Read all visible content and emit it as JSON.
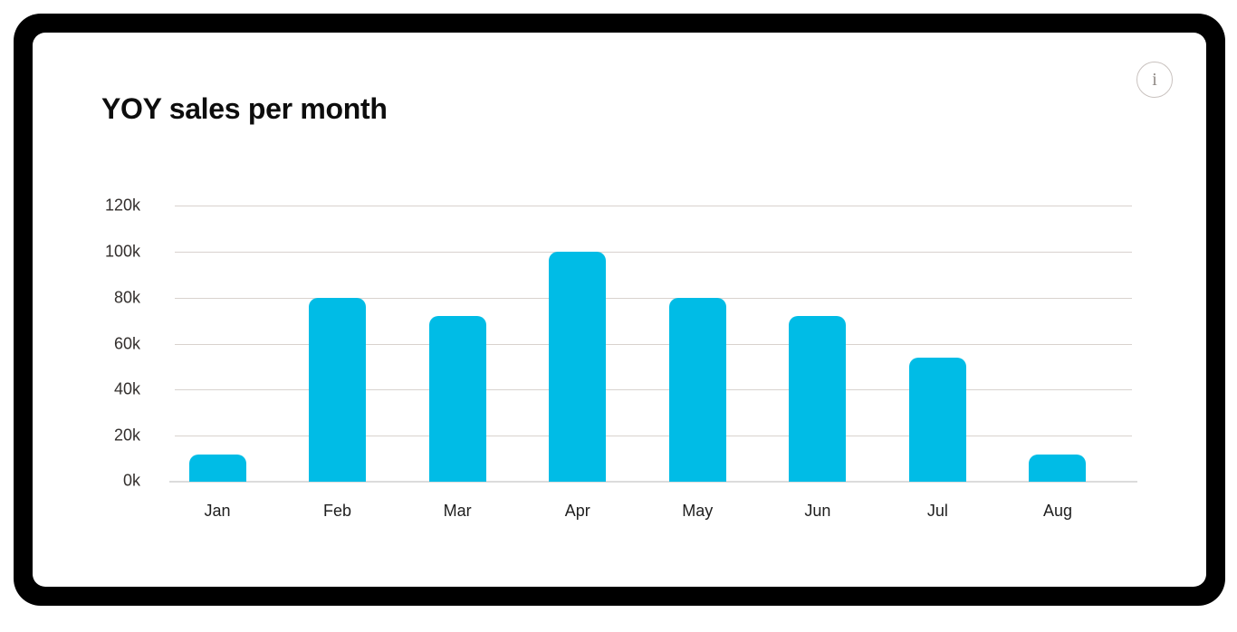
{
  "window": {
    "frame_color": "#000000",
    "card_background": "#ffffff"
  },
  "card": {
    "title": "YOY sales per month",
    "info_button": {
      "glyph": "i"
    }
  },
  "chart_data": {
    "type": "bar",
    "title": "YOY sales per month",
    "categories": [
      "Jan",
      "Feb",
      "Mar",
      "Apr",
      "May",
      "Jun",
      "Jul",
      "Aug"
    ],
    "values": [
      12,
      80,
      72,
      100,
      80,
      72,
      54,
      12
    ],
    "value_unit": "k",
    "xlabel": "",
    "ylabel": "",
    "y_axis": {
      "min": 0,
      "max": 120,
      "tick_step": 20,
      "tick_labels": [
        "0k",
        "20k",
        "40k",
        "60k",
        "80k",
        "100k",
        "120k"
      ]
    },
    "grid": true,
    "legend": false,
    "bar_color": "#00BCE6",
    "gridline_color": "#D8D2CE",
    "axis_line_color": "#DCDCDC",
    "axis_label_color": "#332F2D"
  }
}
